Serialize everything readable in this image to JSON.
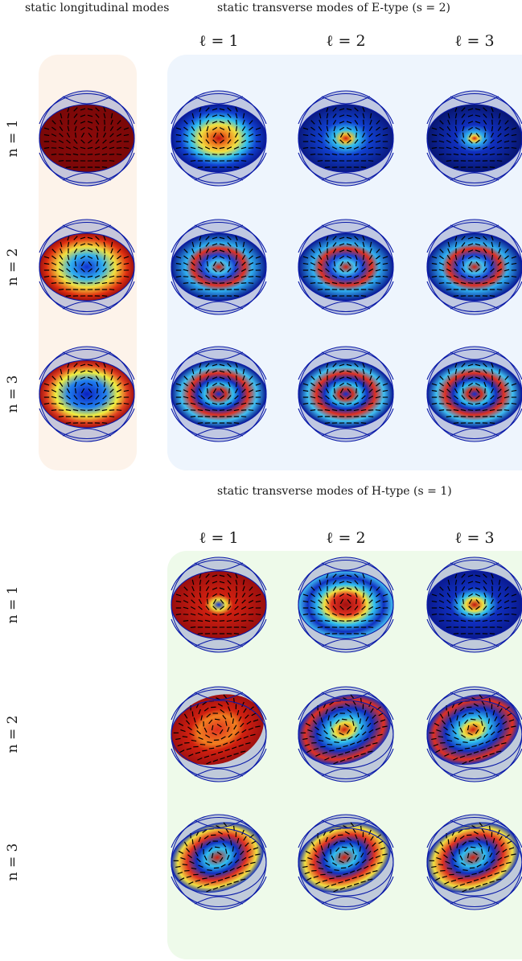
{
  "headings": {
    "longitudinal": "static longitudinal modes",
    "e_type": "static transverse modes of E-type (s = 2)",
    "h_type": "static transverse modes of H-type (s = 1)"
  },
  "column_labels": [
    "ℓ = 1",
    "ℓ = 2",
    "ℓ = 3"
  ],
  "row_labels": [
    "n = 1",
    "n = 2",
    "n = 3"
  ],
  "panel_colors": {
    "longitudinal": "#fdf3ea",
    "e_type": "#eef5fd",
    "h_type": "#eefaea"
  },
  "sphere": {
    "fill": "#9aa3cc",
    "outline": "#0a1aa8"
  },
  "modes": {
    "longitudinal": [
      {
        "n": 1,
        "pattern": "uniform-dark-red"
      },
      {
        "n": 2,
        "pattern": "quadrupole-red-blue"
      },
      {
        "n": 3,
        "pattern": "ring-red-blue"
      }
    ],
    "e_type": [
      {
        "n": 1,
        "l": 1,
        "pattern": "red-core-blue-rim"
      },
      {
        "n": 1,
        "l": 2,
        "pattern": "small-red-core"
      },
      {
        "n": 1,
        "l": 3,
        "pattern": "tiny-red-core"
      },
      {
        "n": 2,
        "l": 1,
        "pattern": "multi-lobe"
      },
      {
        "n": 2,
        "l": 2,
        "pattern": "multi-lobe"
      },
      {
        "n": 2,
        "l": 3,
        "pattern": "multi-lobe"
      },
      {
        "n": 3,
        "l": 1,
        "pattern": "dense-lobes"
      },
      {
        "n": 3,
        "l": 2,
        "pattern": "dense-lobes"
      },
      {
        "n": 3,
        "l": 3,
        "pattern": "dense-lobes"
      }
    ],
    "h_type": [
      {
        "n": 1,
        "l": 1,
        "pattern": "red-spiral"
      },
      {
        "n": 1,
        "l": 2,
        "pattern": "blue-ring-red-core"
      },
      {
        "n": 1,
        "l": 3,
        "pattern": "blue-core-red-spot"
      },
      {
        "n": 2,
        "l": 1,
        "pattern": "tilted-red-vortex"
      },
      {
        "n": 2,
        "l": 2,
        "pattern": "tilted-rings"
      },
      {
        "n": 2,
        "l": 3,
        "pattern": "tilted-rings"
      },
      {
        "n": 3,
        "l": 1,
        "pattern": "tilted-multi-vortex"
      },
      {
        "n": 3,
        "l": 2,
        "pattern": "tilted-multi-vortex"
      },
      {
        "n": 3,
        "l": 3,
        "pattern": "tilted-multi-vortex"
      }
    ]
  }
}
